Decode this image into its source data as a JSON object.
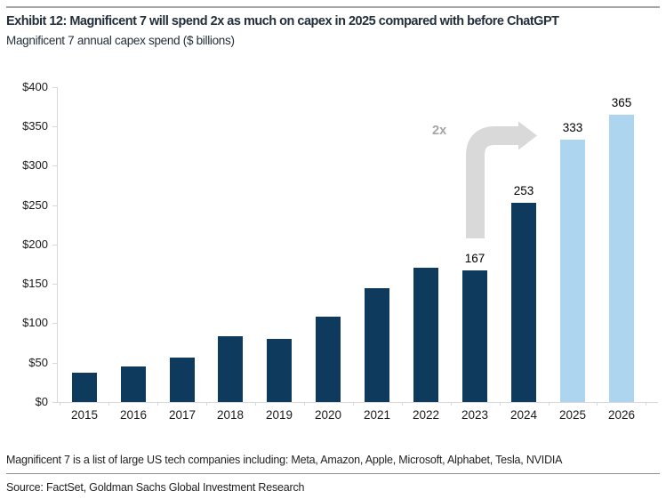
{
  "header": {
    "title": "Exhibit 12: Magnificent 7 will spend 2x as much on capex in 2025 compared with before ChatGPT",
    "subtitle": "Magnificent 7 annual capex spend ($ billions)"
  },
  "chart_data": {
    "type": "bar",
    "title": "Magnificent 7 annual capex spend ($ billions)",
    "xlabel": "",
    "ylabel": "",
    "categories": [
      "2015",
      "2016",
      "2017",
      "2018",
      "2019",
      "2020",
      "2021",
      "2022",
      "2023",
      "2024",
      "2025",
      "2026"
    ],
    "values": [
      37,
      45,
      57,
      84,
      80,
      108,
      145,
      171,
      167,
      253,
      333,
      365
    ],
    "point_labels": [
      "",
      "",
      "",
      "",
      "",
      "",
      "",
      "",
      "167",
      "253",
      "333",
      "365"
    ],
    "forecast_categories": [
      "2025",
      "2026"
    ],
    "y_axis": {
      "min": 0,
      "max": 400,
      "tick_labels": [
        "$0",
        "$50",
        "$100",
        "$150",
        "$200",
        "$250",
        "$300",
        "$350",
        "$400"
      ]
    },
    "grid": false,
    "legend": "none",
    "annotation": {
      "text": "2x"
    },
    "colors": {
      "bar_historical": "#0e3a5e",
      "bar_forecast": "#aed5ef",
      "annotation_text": "#a6a6a6",
      "arrow": "#d9d9d9",
      "axis": "#d9d9d9"
    }
  },
  "footer": {
    "note": "Magnificent 7 is a list of large US tech companies including: Meta, Amazon, Apple, Microsoft, Alphabet, Tesla, NVIDIA",
    "source": "Source: FactSet, Goldman Sachs Global Investment Research"
  }
}
